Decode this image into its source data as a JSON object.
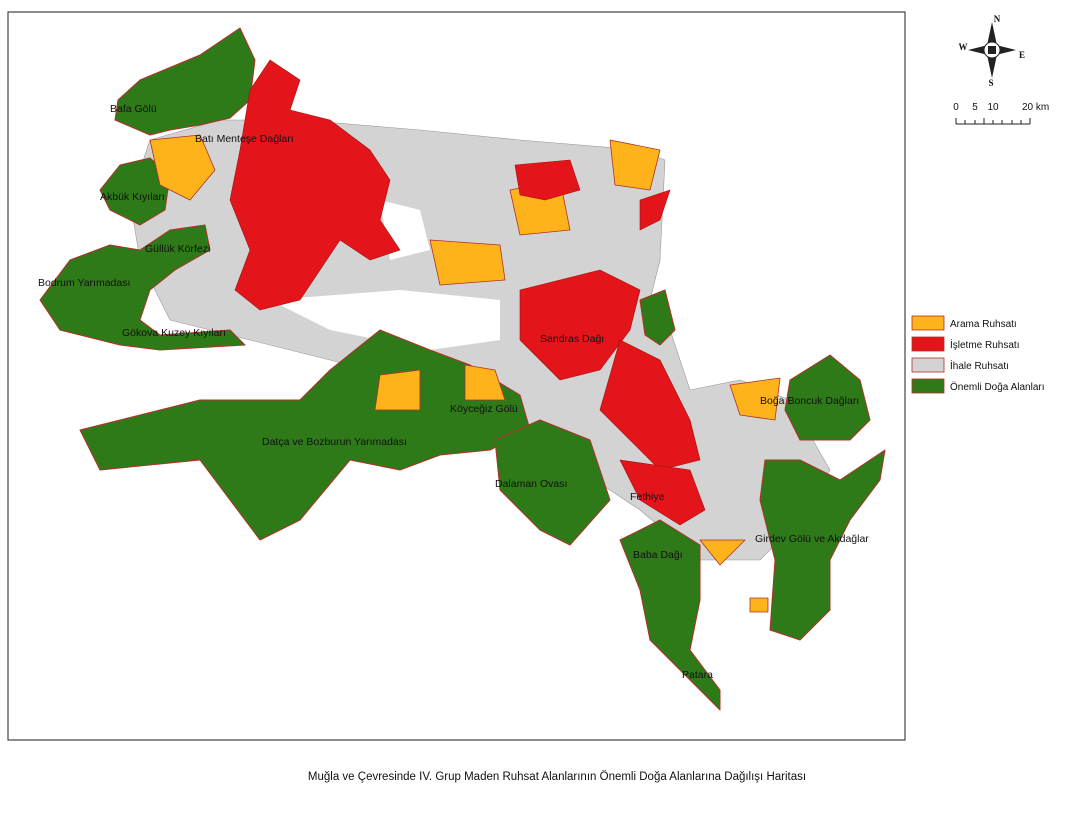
{
  "map": {
    "place_labels": [
      "Bafa Gölü",
      "Batı Menteşe Dağları",
      "Akbük Kıyıları",
      "Güllük Körfezi",
      "Bodrum Yarımadası",
      "Gökova Kuzey Kıyıları",
      "Sandras Dağı",
      "Köyceğiz Gölü",
      "Datça ve Bozburun Yarımadası",
      "Dalaman Ovası",
      "Fethiye",
      "Boğa Boncuk Dağları",
      "Girdev Gölü ve Akdağlar",
      "Baba Dağı",
      "Patara"
    ],
    "legend": [
      {
        "name": "Arama Ruhsatı",
        "color": "#ffb31a"
      },
      {
        "name": "İşletme Ruhsatı",
        "color": "#e3151a"
      },
      {
        "name": "İhale Ruhsatı",
        "color": "#d3d3d3"
      },
      {
        "name": "Önemli Doğa Alanları",
        "color": "#2e7a18"
      }
    ],
    "compass": {
      "n": "N",
      "s": "S",
      "e": "E",
      "w": "W"
    },
    "scale_bar": [
      "0",
      "5",
      "10",
      "20 km"
    ],
    "caption": "Muğla ve Çevresinde IV. Grup Maden Ruhsat Alanlarının Önemli Doğa Alanlarına Dağılışı Haritası"
  }
}
